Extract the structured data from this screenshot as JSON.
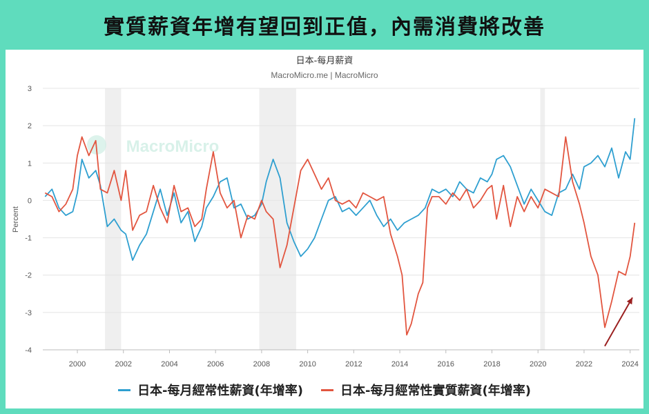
{
  "banner": {
    "title": "實質薪資年增有望回到正值，內需消費將改善"
  },
  "chart_data": {
    "type": "line",
    "title": "日本-每月薪資",
    "subtitle": "MacroMicro.me | MacroMicro",
    "watermark": "MacroMicro",
    "xlabel": "",
    "ylabel": "Percent",
    "ylim": [
      -4,
      3
    ],
    "yticks": [
      3,
      2,
      1,
      0,
      -1,
      -2,
      -3,
      -4
    ],
    "xlim": [
      1998.5,
      2024.4
    ],
    "xticks": [
      2000,
      2002,
      2004,
      2006,
      2008,
      2010,
      2012,
      2014,
      2016,
      2018,
      2020,
      2022,
      2024
    ],
    "grid": true,
    "legend_position": "bottom",
    "shaded_periods": [
      [
        2001.2,
        2001.9
      ],
      [
        2007.9,
        2009.5
      ],
      [
        2020.1,
        2020.3
      ]
    ],
    "series": [
      {
        "name": "日本-每月經常性薪資(年增率)",
        "color": "#2e9fd0",
        "x": [
          1998.6,
          1998.9,
          1999.2,
          1999.5,
          1999.8,
          2000.0,
          2000.2,
          2000.5,
          2000.8,
          2001.0,
          2001.3,
          2001.6,
          2001.9,
          2002.1,
          2002.4,
          2002.7,
          2003.0,
          2003.3,
          2003.6,
          2003.9,
          2004.2,
          2004.5,
          2004.8,
          2005.1,
          2005.4,
          2005.6,
          2005.9,
          2006.2,
          2006.5,
          2006.8,
          2007.1,
          2007.4,
          2007.7,
          2008.0,
          2008.2,
          2008.5,
          2008.8,
          2009.1,
          2009.4,
          2009.7,
          2010.0,
          2010.3,
          2010.6,
          2010.9,
          2011.2,
          2011.5,
          2011.8,
          2012.1,
          2012.4,
          2012.7,
          2013.0,
          2013.3,
          2013.6,
          2013.9,
          2014.2,
          2014.5,
          2014.8,
          2015.1,
          2015.4,
          2015.7,
          2016.0,
          2016.3,
          2016.6,
          2016.9,
          2017.2,
          2017.5,
          2017.8,
          2018.0,
          2018.2,
          2018.5,
          2018.8,
          2019.1,
          2019.4,
          2019.7,
          2020.0,
          2020.3,
          2020.6,
          2020.9,
          2021.2,
          2021.5,
          2021.8,
          2022.0,
          2022.3,
          2022.6,
          2022.9,
          2023.2,
          2023.5,
          2023.8,
          2024.0,
          2024.2
        ],
        "values": [
          0.1,
          0.3,
          -0.2,
          -0.4,
          -0.3,
          0.2,
          1.1,
          0.6,
          0.8,
          0.4,
          -0.7,
          -0.5,
          -0.8,
          -0.9,
          -1.6,
          -1.2,
          -0.9,
          -0.3,
          0.3,
          -0.4,
          0.2,
          -0.6,
          -0.3,
          -1.1,
          -0.7,
          -0.2,
          0.1,
          0.5,
          0.6,
          -0.2,
          -0.1,
          -0.5,
          -0.4,
          -0.1,
          0.5,
          1.1,
          0.6,
          -0.6,
          -1.1,
          -1.5,
          -1.3,
          -1.0,
          -0.5,
          0.0,
          0.1,
          -0.3,
          -0.2,
          -0.4,
          -0.2,
          0.0,
          -0.4,
          -0.7,
          -0.5,
          -0.8,
          -0.6,
          -0.5,
          -0.4,
          -0.2,
          0.3,
          0.2,
          0.3,
          0.1,
          0.5,
          0.3,
          0.2,
          0.6,
          0.5,
          0.7,
          1.1,
          1.2,
          0.9,
          0.4,
          -0.1,
          0.3,
          0.0,
          -0.3,
          -0.4,
          0.2,
          0.3,
          0.7,
          0.3,
          0.9,
          1.0,
          1.2,
          0.9,
          1.4,
          0.6,
          1.3,
          1.1,
          2.2
        ]
      },
      {
        "name": "日本-每月經常性實質薪資(年增率)",
        "color": "#e2553f",
        "x": [
          1998.6,
          1998.9,
          1999.2,
          1999.5,
          1999.8,
          2000.0,
          2000.2,
          2000.5,
          2000.8,
          2001.0,
          2001.3,
          2001.6,
          2001.9,
          2002.1,
          2002.4,
          2002.7,
          2003.0,
          2003.3,
          2003.6,
          2003.9,
          2004.2,
          2004.5,
          2004.8,
          2005.1,
          2005.4,
          2005.6,
          2005.9,
          2006.2,
          2006.5,
          2006.8,
          2007.1,
          2007.4,
          2007.7,
          2008.0,
          2008.2,
          2008.5,
          2008.8,
          2009.1,
          2009.4,
          2009.7,
          2010.0,
          2010.3,
          2010.6,
          2010.9,
          2011.2,
          2011.5,
          2011.8,
          2012.1,
          2012.4,
          2012.7,
          2013.0,
          2013.3,
          2013.6,
          2013.9,
          2014.1,
          2014.3,
          2014.5,
          2014.8,
          2015.0,
          2015.2,
          2015.4,
          2015.7,
          2016.0,
          2016.3,
          2016.6,
          2016.9,
          2017.2,
          2017.5,
          2017.8,
          2018.0,
          2018.2,
          2018.5,
          2018.8,
          2019.1,
          2019.4,
          2019.7,
          2020.0,
          2020.3,
          2020.6,
          2020.9,
          2021.2,
          2021.5,
          2021.8,
          2022.0,
          2022.3,
          2022.6,
          2022.9,
          2023.2,
          2023.5,
          2023.8,
          2024.0,
          2024.2
        ],
        "values": [
          0.2,
          0.1,
          -0.3,
          -0.1,
          0.3,
          1.2,
          1.7,
          1.2,
          1.6,
          0.3,
          0.2,
          0.8,
          0.0,
          0.8,
          -0.8,
          -0.4,
          -0.3,
          0.4,
          -0.2,
          -0.6,
          0.4,
          -0.3,
          -0.2,
          -0.7,
          -0.5,
          0.3,
          1.3,
          0.2,
          -0.2,
          0.0,
          -1.0,
          -0.4,
          -0.5,
          0.0,
          -0.3,
          -0.5,
          -1.8,
          -1.2,
          -0.2,
          0.8,
          1.1,
          0.7,
          0.3,
          0.6,
          0.0,
          -0.1,
          0.0,
          -0.2,
          0.2,
          0.1,
          0.0,
          0.1,
          -0.9,
          -1.5,
          -2.0,
          -3.6,
          -3.3,
          -2.5,
          -2.2,
          -0.2,
          0.1,
          0.1,
          -0.1,
          0.2,
          0.0,
          0.3,
          -0.2,
          0.0,
          0.3,
          0.4,
          -0.5,
          0.4,
          -0.7,
          0.1,
          -0.3,
          0.1,
          -0.2,
          0.3,
          0.2,
          0.1,
          1.7,
          0.5,
          -0.1,
          -0.6,
          -1.5,
          -2.0,
          -3.4,
          -2.7,
          -1.9,
          -2.0,
          -1.5,
          -0.6
        ]
      }
    ],
    "annotations": [
      {
        "type": "arrow",
        "color": "#9a1f1f",
        "from": [
          2022.9,
          -3.9
        ],
        "to": [
          2024.1,
          -2.6
        ]
      }
    ]
  }
}
